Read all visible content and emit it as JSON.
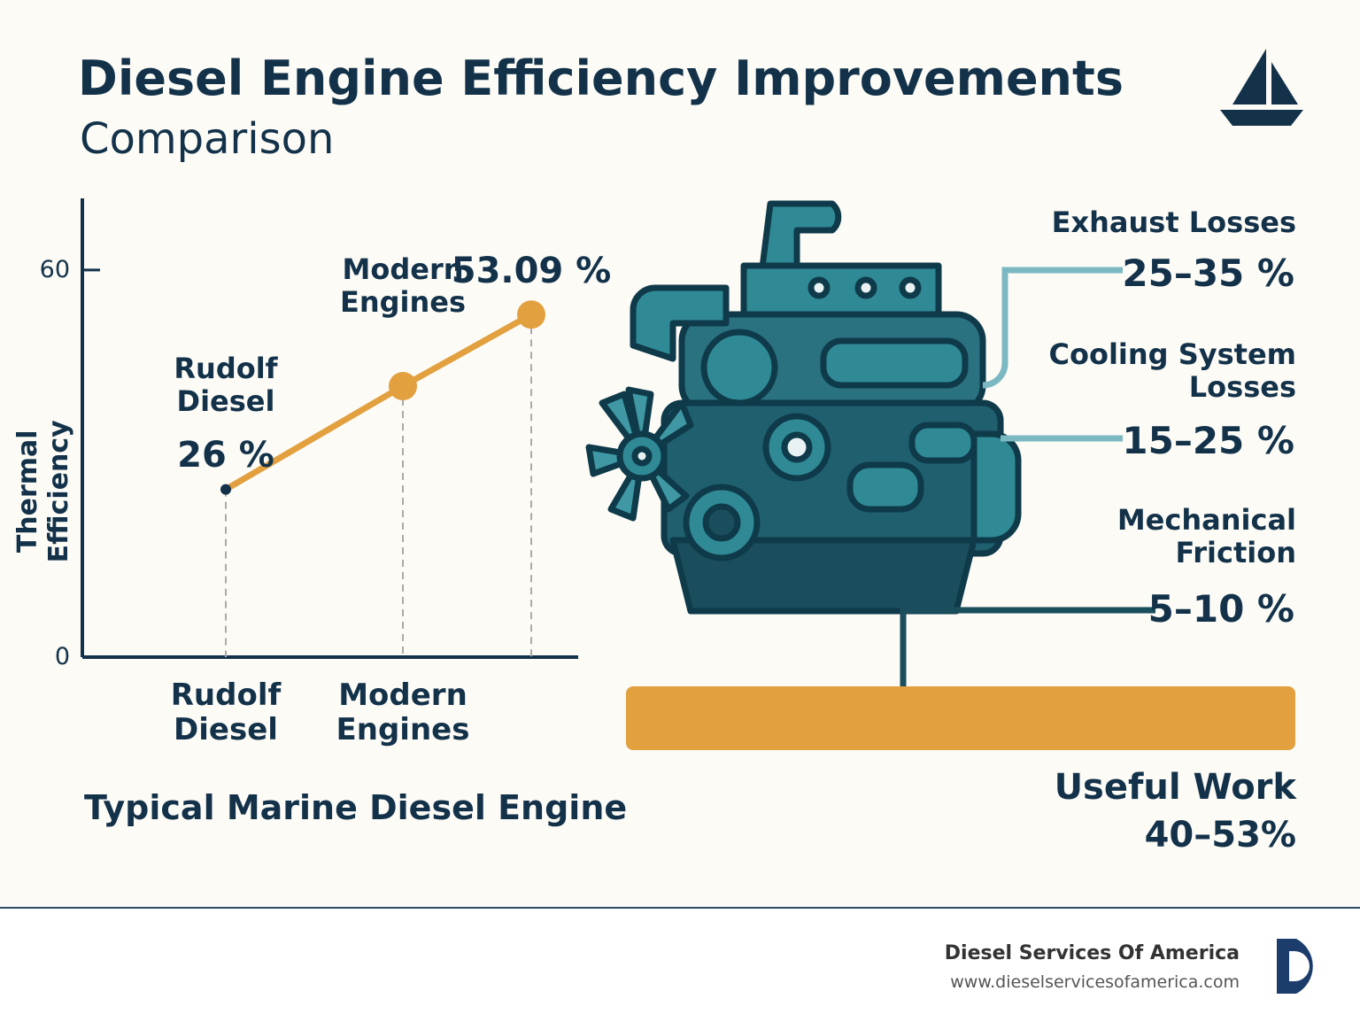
{
  "header": {
    "title": "Diesel Engine Efficiency Improvements",
    "subtitle": "Comparison"
  },
  "chart_data": {
    "type": "line",
    "ylabel": "Thermal Efficiency",
    "categories": [
      "Rudolf Diesel",
      "Modern Engines",
      null
    ],
    "values": [
      26,
      42,
      53.09
    ],
    "value_labels": [
      "26 %",
      null,
      "53.09 %"
    ],
    "annotations": [
      "Rudolf Diesel",
      "Modern Engines"
    ],
    "color": "#e3a03f",
    "ylim": [
      0,
      70
    ],
    "yticks": [
      0,
      60
    ]
  },
  "caption": "Typical Marine Diesel Engine",
  "losses": [
    {
      "name": "Exhaust Losses",
      "range": "25–35 %"
    },
    {
      "name": "Cooling System Losses",
      "range": "15–25 %"
    },
    {
      "name": "Mechanical Friction",
      "range": "5–10 %"
    }
  ],
  "useful_work": {
    "name": "Useful Work",
    "range": "40–53%"
  },
  "footer": {
    "company": "Diesel Services Of America",
    "url": "www.dieselservicesofamerica.com"
  }
}
